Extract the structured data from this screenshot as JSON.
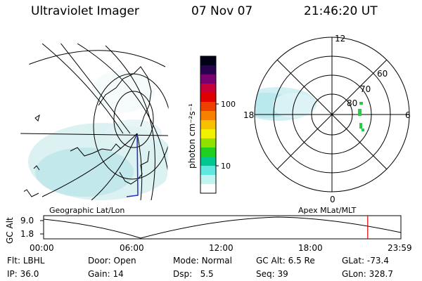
{
  "header": {
    "instrument": "Ultraviolet Imager",
    "date": "07 Nov 07",
    "time": "21:46:20 UT"
  },
  "colorbar": {
    "unit_label": "photon cm⁻²s⁻¹",
    "ticks": [
      "100",
      "10"
    ],
    "colors": [
      "#000018",
      "#2a0050",
      "#7a0070",
      "#c8003a",
      "#e00000",
      "#f04000",
      "#f88000",
      "#f8c000",
      "#f0f000",
      "#90e000",
      "#20d020",
      "#00c890",
      "#60e8e0",
      "#c0f4f0",
      "#ffffff"
    ]
  },
  "panels": {
    "left_label": "Geographic Lat/Lon",
    "right_label": "Apex MLat/MLT",
    "polar_labels": {
      "mlt_top": "12",
      "mlt_bottom": "0",
      "mlt_left": "18",
      "mlt_right": "6",
      "lat_60": "60",
      "lat_70": "70",
      "lat_80": "80"
    }
  },
  "altitude_plot": {
    "ylabel": "GC Alt",
    "yticks": [
      "9.0",
      "1.8"
    ],
    "xticks": [
      "00:00",
      "06:00",
      "12:00",
      "18:00",
      "23:59"
    ],
    "current_time_marker_hours": 21.77,
    "marker_color": "#e00000"
  },
  "info": {
    "flt_label": "Flt:",
    "flt_value": "LBHL",
    "ip_label": "IP:",
    "ip_value": "36.0",
    "door_label": "Door:",
    "door_value": "Open",
    "gain_label": "Gain:",
    "gain_value": "14",
    "mode_label": "Mode:",
    "mode_value": "Normal",
    "dsp_label": "Dsp:",
    "dsp_value": "5.5",
    "gcalt_label": "GC Alt:",
    "gcalt_value": "6.5 Re",
    "seq_label": "Seq:",
    "seq_value": "39",
    "glat_label": "GLat:",
    "glat_value": "-73.4",
    "glon_label": "GLon:",
    "glon_value": "328.7"
  }
}
